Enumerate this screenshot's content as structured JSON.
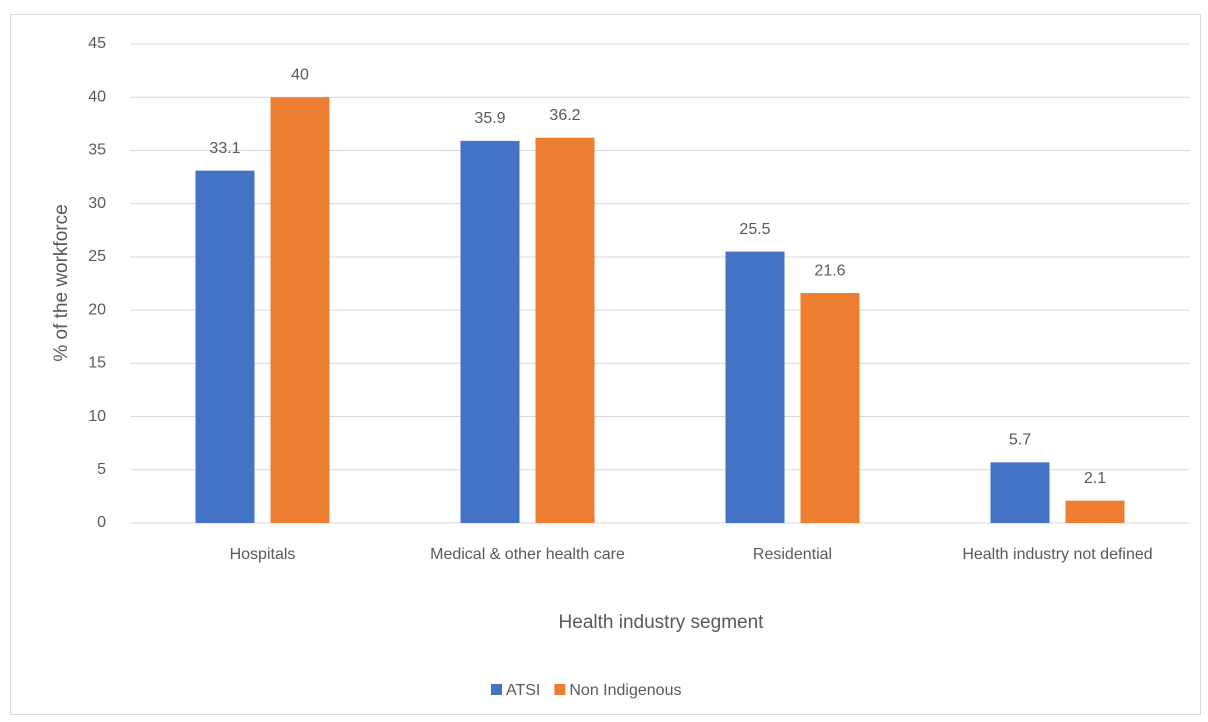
{
  "chart_data": {
    "type": "bar",
    "x_label": "Health industry segment",
    "y_label": "% of the workforce",
    "categories": [
      "Hospitals",
      "Medical & other health care",
      "Residential",
      "Health industry not defined"
    ],
    "series": [
      {
        "name": "ATSI",
        "color": "#4472c4",
        "values": [
          33.1,
          35.9,
          25.5,
          5.7
        ]
      },
      {
        "name": "Non Indigenous",
        "color": "#ed7d31",
        "values": [
          40,
          36.2,
          21.6,
          2.1
        ]
      }
    ],
    "ylim": [
      0,
      45
    ],
    "yticks": [
      0,
      5,
      10,
      15,
      20,
      25,
      30,
      35,
      40,
      45
    ],
    "grid": true,
    "legend": "bottom"
  }
}
